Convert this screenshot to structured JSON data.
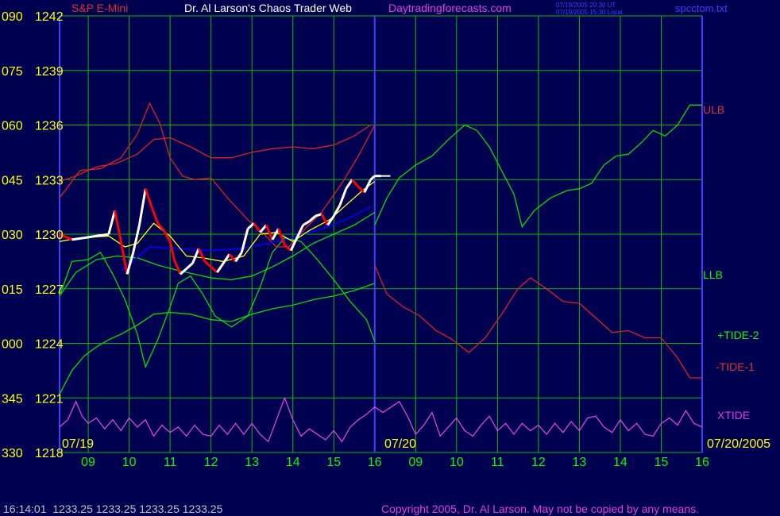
{
  "header": {
    "instrument": "S&P E-Mini",
    "title": "Dr. Al Larson's Chaos Trader Web",
    "site": "Daytradingforecasts.com",
    "stamp_line1": "07/19/2005 20:30 UT",
    "stamp_line2": "07/19/2005 15:30 Local",
    "file": "spcctom.txt"
  },
  "footer": {
    "quote": "16:14:01  1233.25 1233.25 1233.25 1233.25",
    "copyright": "Copyright 2005, Dr. Al Larson. May not be copied by any means."
  },
  "colors": {
    "background": "#000050",
    "grid": "#00c000",
    "divider": "#4040ff",
    "price_up": "#ffffff",
    "price_down": "#ff0000",
    "moving_avg": "#ffff00",
    "trend": "#0000ff",
    "ulb": "#e02020",
    "llb": "#00e000",
    "tide_plus": "#00e000",
    "tide_minus": "#e02020",
    "xtide": "#e040e0",
    "label_yellow": "#ffff00",
    "label_red": "#e03030",
    "label_green": "#00ff00",
    "label_magenta": "#e040e0",
    "label_blue": "#4040ff",
    "label_gray": "#c0c0c0"
  },
  "chart_data": {
    "type": "line",
    "title": "S&P E-Mini",
    "y_left_ticks": [
      "090",
      "075",
      "060",
      "045",
      "030",
      "015",
      "000",
      "345",
      "330"
    ],
    "y_right_ticks": [
      "1242",
      "1239",
      "1236",
      "1233",
      "1230",
      "1227",
      "1224",
      "1221",
      "1218"
    ],
    "y_values": [
      1242,
      1239,
      1236,
      1233,
      1230,
      1227,
      1224,
      1221,
      1218
    ],
    "ylim": [
      1218,
      1242
    ],
    "date_labels": {
      "day1": "07/19",
      "day2": "07/20",
      "day2_end": "07/20/2005"
    },
    "x_ticks": [
      "09",
      "10",
      "11",
      "12",
      "13",
      "14",
      "15",
      "16",
      "09",
      "10",
      "11",
      "12",
      "13",
      "14",
      "15",
      "16"
    ],
    "x_range_hours": [
      8.3,
      24.0
    ],
    "day_divider_hour": 16.0,
    "series_labels": {
      "ulb": "ULB",
      "llb": "LLB",
      "tide_plus": "+TIDE-2",
      "tide_minus": "-TIDE-1",
      "xtide": "XTIDE"
    },
    "price": [
      [
        8.3,
        1230.0
      ],
      [
        8.6,
        1229.7
      ],
      [
        8.9,
        1229.8
      ],
      [
        9.2,
        1229.9
      ],
      [
        9.5,
        1230.0
      ],
      [
        9.65,
        1231.3
      ],
      [
        9.8,
        1229.6
      ],
      [
        9.95,
        1227.8
      ],
      [
        10.1,
        1229.0
      ],
      [
        10.25,
        1230.5
      ],
      [
        10.4,
        1232.5
      ],
      [
        10.55,
        1231.5
      ],
      [
        10.7,
        1230.6
      ],
      [
        10.85,
        1230.2
      ],
      [
        11.0,
        1229.6
      ],
      [
        11.1,
        1228.6
      ],
      [
        11.25,
        1227.8
      ],
      [
        11.4,
        1228.1
      ],
      [
        11.55,
        1228.4
      ],
      [
        11.7,
        1229.2
      ],
      [
        11.85,
        1228.5
      ],
      [
        12.0,
        1228.2
      ],
      [
        12.15,
        1227.9
      ],
      [
        12.3,
        1228.4
      ],
      [
        12.45,
        1228.9
      ],
      [
        12.6,
        1228.5
      ],
      [
        12.75,
        1229.0
      ],
      [
        12.9,
        1230.3
      ],
      [
        13.05,
        1230.6
      ],
      [
        13.2,
        1230.1
      ],
      [
        13.35,
        1230.5
      ],
      [
        13.5,
        1229.7
      ],
      [
        13.65,
        1230.3
      ],
      [
        13.8,
        1229.4
      ],
      [
        13.95,
        1229.1
      ],
      [
        14.1,
        1229.8
      ],
      [
        14.25,
        1230.5
      ],
      [
        14.4,
        1230.7
      ],
      [
        14.55,
        1231.0
      ],
      [
        14.7,
        1231.1
      ],
      [
        14.85,
        1230.5
      ],
      [
        15.0,
        1231.0
      ],
      [
        15.15,
        1231.6
      ],
      [
        15.3,
        1232.5
      ],
      [
        15.45,
        1233.0
      ],
      [
        15.6,
        1232.6
      ],
      [
        15.75,
        1232.3
      ],
      [
        15.9,
        1233.0
      ],
      [
        16.0,
        1233.2
      ],
      [
        16.15,
        1233.2
      ]
    ],
    "moving_avg": [
      [
        8.3,
        1229.6
      ],
      [
        8.8,
        1229.8
      ],
      [
        9.5,
        1229.9
      ],
      [
        9.9,
        1229.3
      ],
      [
        10.2,
        1229.5
      ],
      [
        10.6,
        1230.6
      ],
      [
        11.0,
        1229.9
      ],
      [
        11.4,
        1228.8
      ],
      [
        11.8,
        1228.7
      ],
      [
        12.3,
        1228.5
      ],
      [
        12.8,
        1228.8
      ],
      [
        13.2,
        1230.0
      ],
      [
        13.6,
        1230.1
      ],
      [
        14.0,
        1229.6
      ],
      [
        14.4,
        1230.2
      ],
      [
        14.9,
        1230.8
      ],
      [
        15.3,
        1231.6
      ],
      [
        15.7,
        1232.4
      ],
      [
        16.0,
        1232.9
      ]
    ],
    "trend": [
      [
        9.8,
        1228.0
      ],
      [
        10.5,
        1229.3
      ],
      [
        11.2,
        1229.2
      ],
      [
        12.0,
        1229.1
      ],
      [
        12.7,
        1229.2
      ],
      [
        13.4,
        1229.5
      ],
      [
        14.0,
        1229.8
      ],
      [
        14.7,
        1230.3
      ],
      [
        15.3,
        1230.8
      ],
      [
        15.9,
        1231.5
      ]
    ],
    "upper_band": [
      [
        8.3,
        1232.9
      ],
      [
        8.7,
        1233.2
      ],
      [
        9.2,
        1233.7
      ],
      [
        9.7,
        1233.9
      ],
      [
        10.2,
        1234.4
      ],
      [
        10.6,
        1235.2
      ],
      [
        11.0,
        1235.3
      ],
      [
        11.5,
        1234.8
      ],
      [
        12.0,
        1234.2
      ],
      [
        12.5,
        1234.2
      ],
      [
        13.0,
        1234.5
      ],
      [
        13.5,
        1234.7
      ],
      [
        14.0,
        1234.8
      ],
      [
        14.5,
        1234.7
      ],
      [
        15.0,
        1234.9
      ],
      [
        15.5,
        1235.4
      ],
      [
        15.9,
        1236.0
      ]
    ],
    "lower_band": [
      [
        8.3,
        1226.6
      ],
      [
        8.7,
        1227.9
      ],
      [
        9.2,
        1228.6
      ],
      [
        9.7,
        1228.8
      ],
      [
        10.2,
        1228.7
      ],
      [
        10.7,
        1228.3
      ],
      [
        11.2,
        1228.0
      ],
      [
        11.6,
        1227.8
      ],
      [
        12.0,
        1227.6
      ],
      [
        12.5,
        1227.5
      ],
      [
        13.0,
        1227.7
      ],
      [
        13.5,
        1228.2
      ],
      [
        14.0,
        1228.8
      ],
      [
        14.5,
        1229.5
      ],
      [
        15.0,
        1230.0
      ],
      [
        15.5,
        1230.5
      ],
      [
        16.0,
        1231.2
      ]
    ],
    "ulb": [
      [
        8.3,
        1232.0
      ],
      [
        8.8,
        1233.5
      ],
      [
        9.3,
        1233.6
      ],
      [
        9.8,
        1234.2
      ],
      [
        10.2,
        1235.5
      ],
      [
        10.5,
        1237.2
      ],
      [
        10.75,
        1236.1
      ],
      [
        11.0,
        1234.2
      ],
      [
        11.3,
        1233.2
      ],
      [
        11.6,
        1233.0
      ],
      [
        12.0,
        1233.1
      ],
      [
        12.4,
        1232.0
      ],
      [
        12.9,
        1230.8
      ],
      [
        13.3,
        1230.0
      ],
      [
        13.6,
        1229.3
      ],
      [
        13.9,
        1229.3
      ],
      [
        14.3,
        1230.3
      ],
      [
        14.7,
        1231.2
      ],
      [
        15.2,
        1232.8
      ],
      [
        15.6,
        1234.3
      ],
      [
        16.0,
        1236.0
      ]
    ],
    "llb": [
      [
        8.3,
        1226.6
      ],
      [
        8.6,
        1228.5
      ],
      [
        9.0,
        1228.6
      ],
      [
        9.3,
        1229.0
      ],
      [
        9.6,
        1227.8
      ],
      [
        9.9,
        1226.4
      ],
      [
        10.2,
        1224.5
      ],
      [
        10.4,
        1222.7
      ],
      [
        10.7,
        1224.2
      ],
      [
        11.0,
        1226.0
      ],
      [
        11.2,
        1227.3
      ],
      [
        11.5,
        1227.7
      ],
      [
        11.8,
        1226.7
      ],
      [
        12.1,
        1225.5
      ],
      [
        12.5,
        1224.9
      ],
      [
        12.9,
        1225.5
      ],
      [
        13.2,
        1227.1
      ],
      [
        13.5,
        1229.0
      ],
      [
        13.8,
        1229.8
      ],
      [
        14.2,
        1229.6
      ],
      [
        14.6,
        1228.6
      ],
      [
        15.0,
        1227.5
      ],
      [
        15.4,
        1226.3
      ],
      [
        15.8,
        1225.3
      ],
      [
        16.0,
        1224.1
      ]
    ],
    "tide_plus": [
      [
        8.3,
        1221.2
      ],
      [
        8.6,
        1222.5
      ],
      [
        8.9,
        1223.3
      ],
      [
        9.2,
        1223.8
      ],
      [
        9.5,
        1224.2
      ],
      [
        9.8,
        1224.5
      ],
      [
        10.2,
        1225.0
      ],
      [
        10.6,
        1225.6
      ],
      [
        11.0,
        1225.7
      ],
      [
        11.5,
        1225.6
      ],
      [
        12.0,
        1225.3
      ],
      [
        12.5,
        1225.2
      ],
      [
        13.0,
        1225.6
      ],
      [
        13.5,
        1225.9
      ],
      [
        14.0,
        1226.1
      ],
      [
        14.5,
        1226.4
      ],
      [
        15.0,
        1226.6
      ],
      [
        15.5,
        1226.9
      ],
      [
        16.0,
        1227.3
      ],
      [
        16.0,
        1230.5
      ],
      [
        16.3,
        1232.0
      ],
      [
        16.6,
        1233.1
      ],
      [
        17.0,
        1233.8
      ],
      [
        17.4,
        1234.3
      ],
      [
        17.8,
        1235.2
      ],
      [
        18.2,
        1236.0
      ],
      [
        18.5,
        1235.7
      ],
      [
        18.8,
        1234.8
      ],
      [
        19.1,
        1233.5
      ],
      [
        19.4,
        1232.2
      ],
      [
        19.6,
        1230.4
      ],
      [
        19.9,
        1231.3
      ],
      [
        20.3,
        1232.0
      ],
      [
        20.7,
        1232.4
      ],
      [
        21.0,
        1232.5
      ],
      [
        21.3,
        1232.8
      ],
      [
        21.6,
        1233.8
      ],
      [
        21.9,
        1234.3
      ],
      [
        22.2,
        1234.4
      ],
      [
        22.5,
        1235.0
      ],
      [
        22.8,
        1235.7
      ],
      [
        23.1,
        1235.4
      ],
      [
        23.4,
        1236.0
      ],
      [
        23.7,
        1237.1
      ],
      [
        24.0,
        1237.1
      ]
    ],
    "tide_minus": [
      [
        16.0,
        1228.3
      ],
      [
        16.3,
        1226.7
      ],
      [
        16.7,
        1226.0
      ],
      [
        17.1,
        1225.5
      ],
      [
        17.5,
        1224.7
      ],
      [
        17.9,
        1224.2
      ],
      [
        18.3,
        1223.5
      ],
      [
        18.7,
        1224.3
      ],
      [
        19.1,
        1225.6
      ],
      [
        19.5,
        1227.0
      ],
      [
        19.8,
        1227.6
      ],
      [
        20.2,
        1227.0
      ],
      [
        20.6,
        1226.3
      ],
      [
        21.0,
        1226.2
      ],
      [
        21.4,
        1225.4
      ],
      [
        21.8,
        1224.6
      ],
      [
        22.2,
        1224.7
      ],
      [
        22.6,
        1224.3
      ],
      [
        23.0,
        1224.3
      ],
      [
        23.4,
        1223.2
      ],
      [
        23.7,
        1222.1
      ],
      [
        24.0,
        1222.1
      ]
    ],
    "xtide": [
      [
        8.3,
        1219.4
      ],
      [
        8.5,
        1219.8
      ],
      [
        8.7,
        1220.8
      ],
      [
        8.85,
        1220.0
      ],
      [
        9.0,
        1219.6
      ],
      [
        9.2,
        1219.9
      ],
      [
        9.4,
        1219.3
      ],
      [
        9.6,
        1219.8
      ],
      [
        9.8,
        1219.2
      ],
      [
        10.0,
        1219.9
      ],
      [
        10.2,
        1219.4
      ],
      [
        10.4,
        1219.8
      ],
      [
        10.6,
        1218.9
      ],
      [
        10.8,
        1219.5
      ],
      [
        11.0,
        1219.1
      ],
      [
        11.2,
        1219.4
      ],
      [
        11.4,
        1218.9
      ],
      [
        11.6,
        1219.5
      ],
      [
        11.8,
        1219.0
      ],
      [
        12.0,
        1218.9
      ],
      [
        12.2,
        1219.5
      ],
      [
        12.4,
        1219.0
      ],
      [
        12.6,
        1219.6
      ],
      [
        12.8,
        1219.0
      ],
      [
        13.0,
        1219.6
      ],
      [
        13.2,
        1219.0
      ],
      [
        13.4,
        1218.6
      ],
      [
        13.6,
        1219.8
      ],
      [
        13.8,
        1221.0
      ],
      [
        14.0,
        1219.8
      ],
      [
        14.2,
        1218.9
      ],
      [
        14.4,
        1219.3
      ],
      [
        14.6,
        1219.0
      ],
      [
        14.8,
        1218.7
      ],
      [
        15.0,
        1219.2
      ],
      [
        15.2,
        1218.6
      ],
      [
        15.4,
        1219.4
      ],
      [
        15.6,
        1219.8
      ],
      [
        15.8,
        1220.1
      ],
      [
        16.0,
        1220.5
      ],
      [
        16.2,
        1220.2
      ],
      [
        16.4,
        1220.5
      ],
      [
        16.6,
        1220.8
      ],
      [
        16.8,
        1220.0
      ],
      [
        17.0,
        1219.0
      ],
      [
        17.2,
        1219.5
      ],
      [
        17.4,
        1220.2
      ],
      [
        17.6,
        1218.9
      ],
      [
        17.8,
        1219.4
      ],
      [
        18.0,
        1219.9
      ],
      [
        18.2,
        1219.2
      ],
      [
        18.4,
        1218.9
      ],
      [
        18.6,
        1219.5
      ],
      [
        18.8,
        1220.0
      ],
      [
        19.0,
        1219.2
      ],
      [
        19.2,
        1219.6
      ],
      [
        19.4,
        1219.0
      ],
      [
        19.6,
        1219.6
      ],
      [
        19.8,
        1219.2
      ],
      [
        20.0,
        1219.5
      ],
      [
        20.2,
        1219.0
      ],
      [
        20.4,
        1219.6
      ],
      [
        20.6,
        1219.1
      ],
      [
        20.8,
        1219.7
      ],
      [
        21.0,
        1219.2
      ],
      [
        21.2,
        1219.9
      ],
      [
        21.4,
        1220.0
      ],
      [
        21.6,
        1219.4
      ],
      [
        21.8,
        1219.1
      ],
      [
        22.0,
        1219.8
      ],
      [
        22.2,
        1219.2
      ],
      [
        22.4,
        1219.6
      ],
      [
        22.6,
        1219.0
      ],
      [
        22.8,
        1218.9
      ],
      [
        23.0,
        1219.6
      ],
      [
        23.2,
        1219.9
      ],
      [
        23.4,
        1219.5
      ],
      [
        23.6,
        1220.3
      ],
      [
        23.8,
        1219.6
      ],
      [
        24.0,
        1219.4
      ]
    ]
  }
}
